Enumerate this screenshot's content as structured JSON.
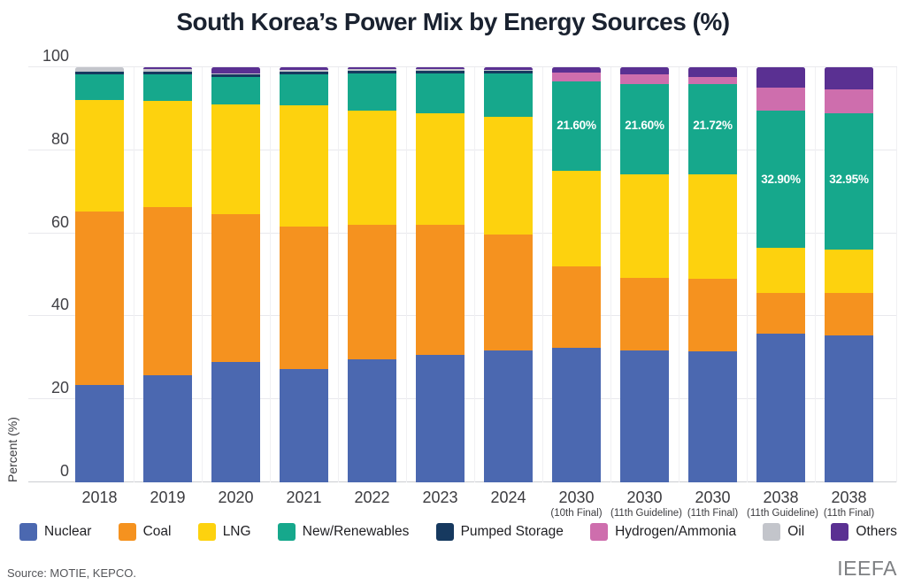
{
  "title": "South Korea’s Power Mix by Energy Sources (%)",
  "source": "Source: MOTIE, KEPCO.",
  "watermark": "IEEFA",
  "y_axis": {
    "label": "Percent (%)"
  },
  "chart_data": {
    "type": "bar",
    "stacked": true,
    "title": "South Korea’s Power Mix by Energy Sources (%)",
    "xlabel": "",
    "ylabel": "Percent (%)",
    "ylim": [
      0,
      100
    ],
    "y_ticks": [
      0,
      20,
      40,
      60,
      80,
      100
    ],
    "grid": true,
    "legend_position": "bottom",
    "categories": [
      {
        "label": "2018",
        "sublabel": ""
      },
      {
        "label": "2019",
        "sublabel": ""
      },
      {
        "label": "2020",
        "sublabel": ""
      },
      {
        "label": "2021",
        "sublabel": ""
      },
      {
        "label": "2022",
        "sublabel": ""
      },
      {
        "label": "2023",
        "sublabel": ""
      },
      {
        "label": "2024",
        "sublabel": ""
      },
      {
        "label": "2030",
        "sublabel": "(10th Final)"
      },
      {
        "label": "2030",
        "sublabel": "(11th Guideline)"
      },
      {
        "label": "2030",
        "sublabel": "(11th Final)"
      },
      {
        "label": "2038",
        "sublabel": "(11th Guideline)"
      },
      {
        "label": "2038",
        "sublabel": "(11th Final)"
      }
    ],
    "series": [
      {
        "name": "Nuclear",
        "color": "#4b68b0",
        "values": [
          23.4,
          25.9,
          29.0,
          27.4,
          29.6,
          30.7,
          31.7,
          32.4,
          31.8,
          31.6,
          35.8,
          35.4
        ]
      },
      {
        "name": "Coal",
        "color": "#f5921f",
        "values": [
          41.9,
          40.4,
          35.6,
          34.3,
          32.5,
          31.4,
          28.1,
          19.7,
          17.4,
          17.5,
          9.8,
          10.2
        ]
      },
      {
        "name": "LNG",
        "color": "#fdd20e",
        "values": [
          26.8,
          25.6,
          26.4,
          29.2,
          27.5,
          26.8,
          28.2,
          22.9,
          25.1,
          25.1,
          11.0,
          10.4
        ]
      },
      {
        "name": "New/Renewables",
        "color": "#16a88c",
        "values": [
          6.2,
          6.5,
          6.6,
          7.5,
          8.9,
          9.6,
          10.5,
          21.6,
          21.6,
          21.72,
          32.9,
          32.95
        ]
      },
      {
        "name": "Pumped Storage",
        "color": "#16395f",
        "values": [
          0.7,
          0.6,
          0.6,
          0.6,
          0.6,
          0.6,
          0.6,
          0,
          0,
          0,
          0,
          0
        ]
      },
      {
        "name": "Hydrogen/Ammonia",
        "color": "#ce6ead",
        "values": [
          0,
          0,
          0,
          0,
          0,
          0,
          0,
          2.1,
          2.4,
          1.8,
          5.6,
          5.7
        ]
      },
      {
        "name": "Oil",
        "color": "#c3c5cb",
        "values": [
          1.0,
          0.6,
          0.4,
          0.4,
          0.5,
          0.4,
          0.3,
          0,
          0,
          0,
          0,
          0
        ]
      },
      {
        "name": "Others",
        "color": "#5a3092",
        "values": [
          0,
          0.4,
          1.4,
          0.6,
          0.4,
          0.5,
          0.6,
          1.3,
          1.7,
          2.3,
          4.9,
          5.35
        ]
      }
    ],
    "annotations": [
      {
        "category_index": 7,
        "text": "21.60%",
        "at": 86
      },
      {
        "category_index": 8,
        "text": "21.60%",
        "at": 86
      },
      {
        "category_index": 9,
        "text": "21.72%",
        "at": 86
      },
      {
        "category_index": 10,
        "text": "32.90%",
        "at": 73
      },
      {
        "category_index": 11,
        "text": "32.95%",
        "at": 73
      }
    ]
  }
}
